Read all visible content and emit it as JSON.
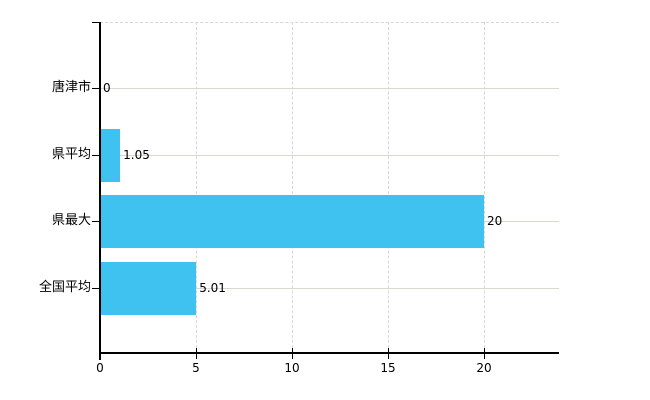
{
  "chart_data": {
    "type": "bar",
    "orientation": "horizontal",
    "title": "",
    "categories": [
      "唐津市",
      "県平均",
      "県最大",
      "全国平均"
    ],
    "values": [
      0,
      1.05,
      20,
      5.01
    ],
    "value_labels": [
      "0",
      "1.05",
      "20",
      "5.01"
    ],
    "x_ticks": [
      0,
      5,
      10,
      15,
      20
    ],
    "x_tick_labels": [
      "0",
      "5",
      "10",
      "15",
      "20"
    ],
    "xlim": [
      0,
      23.9
    ],
    "ylabel": "",
    "xlabel": "",
    "grid": true,
    "legend_position": "none",
    "bar_color": "#40c2f0",
    "grid_color": "#d6dad2",
    "axis_color": "#000000",
    "text_color": "#000000",
    "background_color": "#ffffff"
  }
}
